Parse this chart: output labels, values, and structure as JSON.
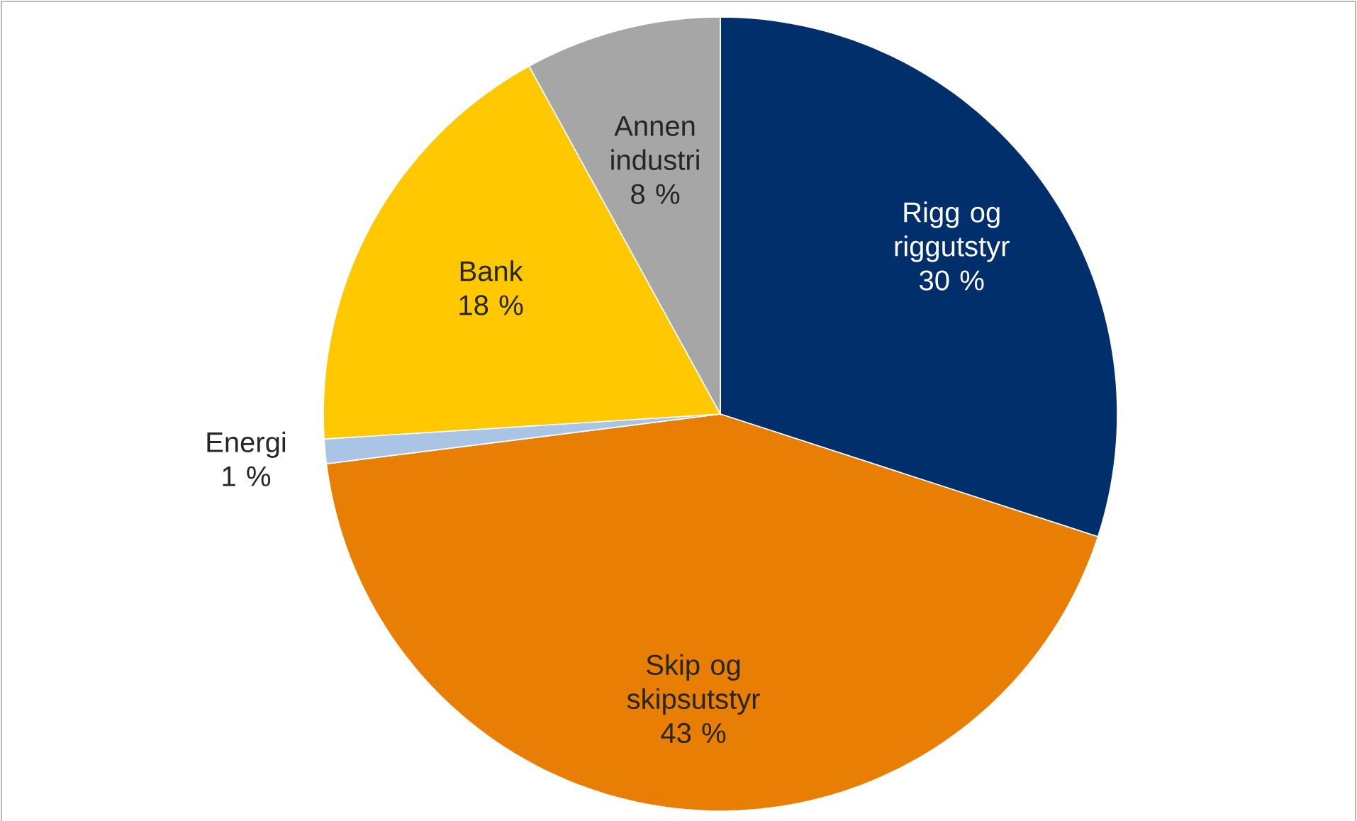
{
  "chart_data": {
    "type": "pie",
    "categories": [
      "Rigg og riggutstyr",
      "Skip og skipsutstyr",
      "Energi",
      "Bank",
      "Annen industri"
    ],
    "values": [
      30,
      43,
      1,
      18,
      8
    ],
    "value_labels": [
      "30 %",
      "43 %",
      "1 %",
      "18 %",
      "8 %"
    ],
    "colors": [
      "#002f6c",
      "#e87e04",
      "#a9c4e4",
      "#ffc800",
      "#a6a6a6"
    ]
  }
}
